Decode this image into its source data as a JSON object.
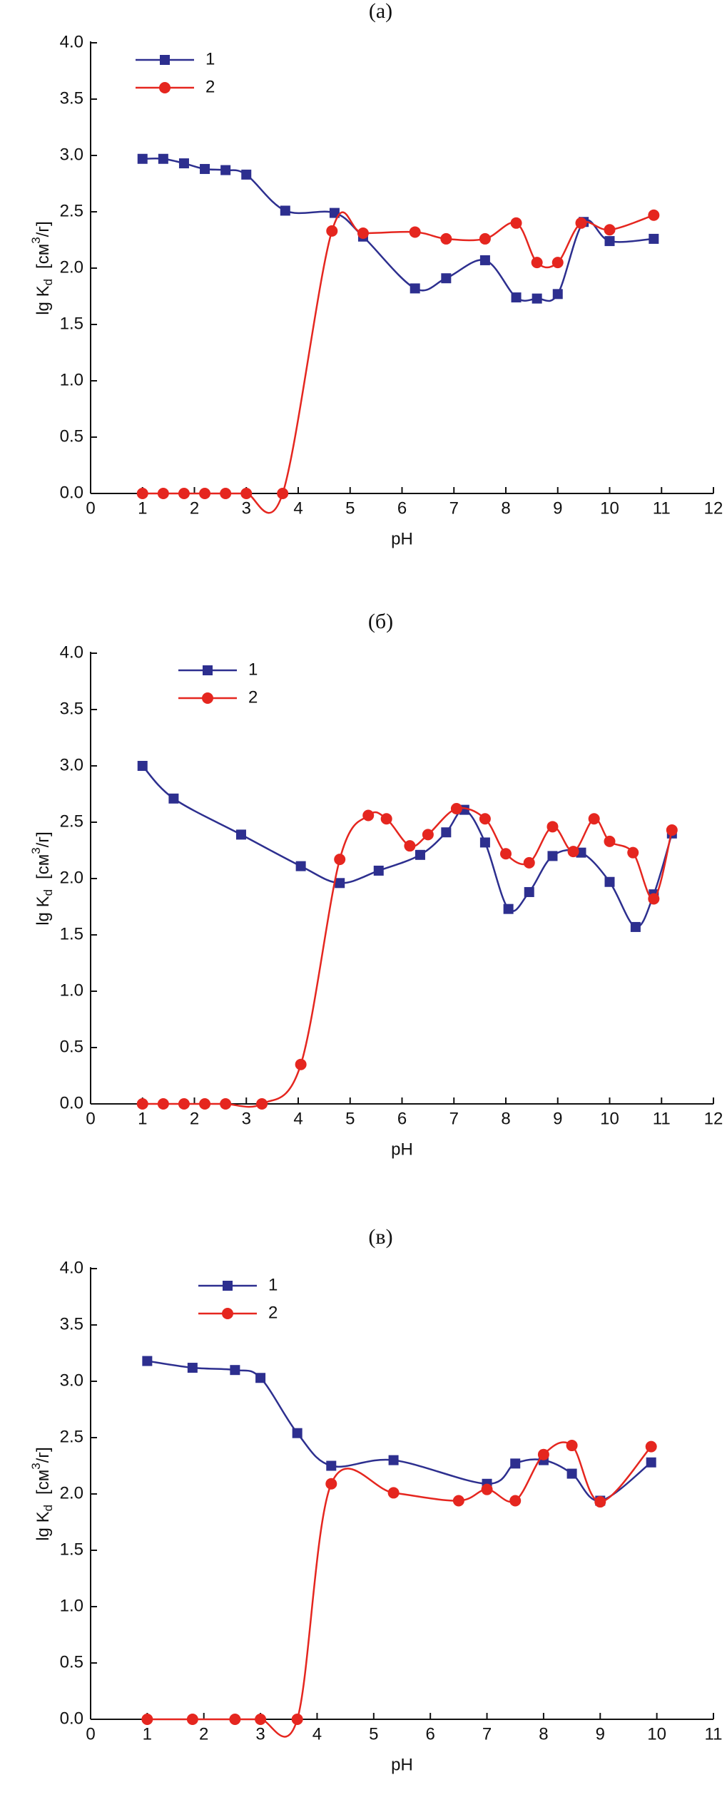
{
  "chart_data": [
    {
      "type": "line",
      "title": "(а)",
      "xlabel": "pH",
      "ylabel": [
        "lg K",
        "d",
        "[см",
        "3",
        "/г]"
      ],
      "xlim": [
        0,
        12
      ],
      "ylim": [
        0,
        4
      ],
      "xticks": [
        0,
        1,
        2,
        3,
        4,
        5,
        6,
        7,
        8,
        9,
        10,
        11,
        12
      ],
      "yticks": [
        {
          "value": 0,
          "label": "0.0"
        },
        {
          "value": 0.5,
          "label": "0.5"
        },
        {
          "value": 1,
          "label": "1.0"
        },
        {
          "value": 1.5,
          "label": "1.5"
        },
        {
          "value": 2,
          "label": "2.0"
        },
        {
          "value": 2.5,
          "label": "2.5"
        },
        {
          "value": 3,
          "label": "3.0"
        },
        {
          "value": 3.5,
          "label": "3.5"
        },
        {
          "value": 4,
          "label": "4.0"
        }
      ],
      "series": [
        {
          "name": "1",
          "color": "#2d2f8f",
          "marker": "square",
          "x": [
            1,
            1.4,
            1.8,
            2.2,
            2.6,
            3,
            3.75,
            4.7,
            5.25,
            6.25,
            6.85,
            7.6,
            8.2,
            8.6,
            9,
            9.5,
            10,
            10.85
          ],
          "values": [
            2.97,
            2.97,
            2.93,
            2.88,
            2.87,
            2.83,
            2.51,
            2.49,
            2.28,
            1.82,
            1.91,
            2.07,
            1.74,
            1.73,
            1.77,
            2.41,
            2.24,
            2.26
          ]
        },
        {
          "name": "2",
          "color": "#e5261f",
          "marker": "circle",
          "x": [
            1,
            1.4,
            1.8,
            2.2,
            2.6,
            3,
            3.7,
            4.65,
            5.25,
            6.25,
            6.85,
            7.6,
            8.2,
            8.6,
            9,
            9.45,
            10,
            10.85
          ],
          "values": [
            0,
            0,
            0,
            0,
            0,
            0,
            0,
            2.33,
            2.31,
            2.32,
            2.26,
            2.26,
            2.4,
            2.05,
            2.05,
            2.4,
            2.34,
            2.47
          ]
        }
      ]
    },
    {
      "type": "line",
      "title": "(б)",
      "xlabel": "pH",
      "ylabel": [
        "lg K",
        "d",
        "[см",
        "3",
        "/г]"
      ],
      "xlim": [
        0,
        12
      ],
      "ylim": [
        0,
        4
      ],
      "xticks": [
        0,
        1,
        2,
        3,
        4,
        5,
        6,
        7,
        8,
        9,
        10,
        11,
        12
      ],
      "yticks": [
        {
          "value": 0,
          "label": "0.0"
        },
        {
          "value": 0.5,
          "label": "0.5"
        },
        {
          "value": 1,
          "label": "1.0"
        },
        {
          "value": 1.5,
          "label": "1.5"
        },
        {
          "value": 2,
          "label": "2.0"
        },
        {
          "value": 2.5,
          "label": "2.5"
        },
        {
          "value": 3,
          "label": "3.0"
        },
        {
          "value": 3.5,
          "label": "3.5"
        },
        {
          "value": 4,
          "label": "4.0"
        }
      ],
      "series": [
        {
          "name": "1",
          "color": "#2d2f8f",
          "marker": "square",
          "x": [
            1,
            1.6,
            2.9,
            4.05,
            4.8,
            5.55,
            6.35,
            6.85,
            7.2,
            7.6,
            8.05,
            8.45,
            8.9,
            9.45,
            10,
            10.5,
            10.85,
            11.2
          ],
          "values": [
            3.0,
            2.71,
            2.39,
            2.11,
            1.96,
            2.07,
            2.21,
            2.41,
            2.61,
            2.32,
            1.73,
            1.88,
            2.2,
            2.23,
            1.97,
            1.57,
            1.86,
            2.4
          ]
        },
        {
          "name": "2",
          "color": "#e5261f",
          "marker": "circle",
          "x": [
            1,
            1.4,
            1.8,
            2.2,
            2.6,
            3.3,
            4.05,
            4.8,
            5.35,
            5.7,
            6.15,
            6.5,
            7.05,
            7.6,
            8,
            8.45,
            8.9,
            9.3,
            9.7,
            10,
            10.45,
            10.85,
            11.2
          ],
          "values": [
            0,
            0,
            0,
            0,
            0,
            0,
            0.35,
            2.17,
            2.56,
            2.53,
            2.29,
            2.39,
            2.62,
            2.53,
            2.22,
            2.14,
            2.46,
            2.24,
            2.53,
            2.33,
            2.23,
            1.82,
            2.43
          ]
        }
      ]
    },
    {
      "type": "line",
      "title": "(в)",
      "xlabel": "pH",
      "ylabel": [
        "lg K",
        "d",
        "[см",
        "3",
        "/г]"
      ],
      "xlim": [
        0,
        11
      ],
      "ylim": [
        0,
        4
      ],
      "xticks": [
        0,
        1,
        2,
        3,
        4,
        5,
        6,
        7,
        8,
        9,
        10,
        11
      ],
      "yticks": [
        {
          "value": 0,
          "label": "0.0"
        },
        {
          "value": 0.5,
          "label": "0.5"
        },
        {
          "value": 1,
          "label": "1.0"
        },
        {
          "value": 1.5,
          "label": "1.5"
        },
        {
          "value": 2,
          "label": "2.0"
        },
        {
          "value": 2.5,
          "label": "2.5"
        },
        {
          "value": 3,
          "label": "3.0"
        },
        {
          "value": 3.5,
          "label": "3.5"
        },
        {
          "value": 4,
          "label": "4.0"
        }
      ],
      "series": [
        {
          "name": "1",
          "color": "#2d2f8f",
          "marker": "square",
          "x": [
            1,
            1.8,
            2.55,
            3,
            3.65,
            4.25,
            5.35,
            7,
            7.5,
            8,
            8.5,
            9,
            9.9
          ],
          "values": [
            3.18,
            3.12,
            3.1,
            3.03,
            2.54,
            2.25,
            2.3,
            2.09,
            2.27,
            2.3,
            2.18,
            1.94,
            2.28
          ]
        },
        {
          "name": "2",
          "color": "#e5261f",
          "marker": "circle",
          "x": [
            1,
            1.8,
            2.55,
            3,
            3.65,
            4.25,
            5.35,
            6.5,
            7,
            7.5,
            8,
            8.5,
            9,
            9.9
          ],
          "values": [
            0,
            0,
            0,
            0,
            0,
            2.09,
            2.01,
            1.94,
            2.04,
            1.94,
            2.35,
            2.43,
            1.93,
            2.42
          ]
        }
      ]
    }
  ]
}
